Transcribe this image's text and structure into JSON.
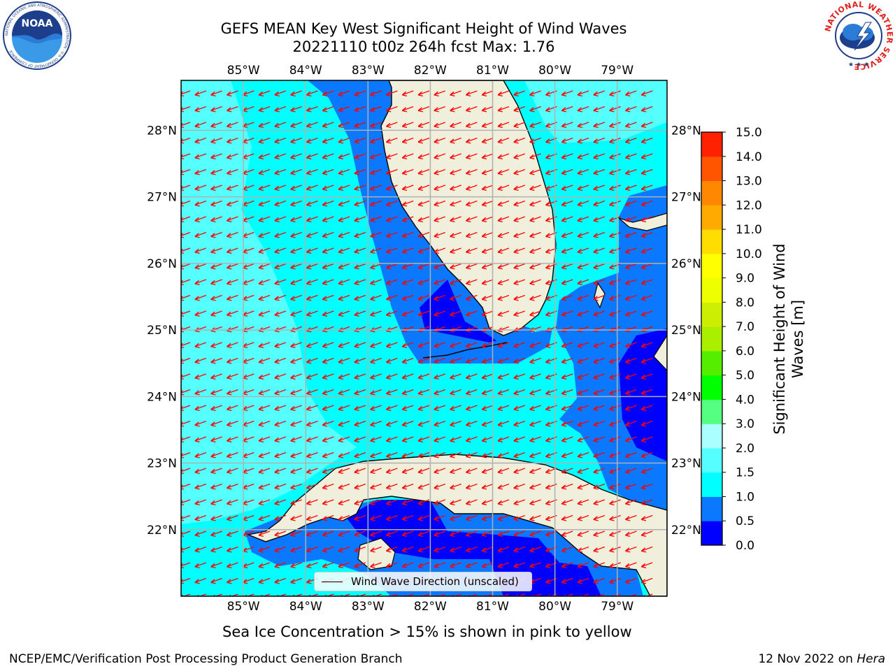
{
  "title": {
    "line1": "GEFS MEAN Key West Significant Height of Wind Waves",
    "line2": "20221110 t00z 264h fcst   Max: 1.76"
  },
  "logos": {
    "noaa": {
      "label": "NOAA",
      "ring_text": "NATIONAL OCEANIC AND ATMOSPHERIC ADMINISTRATION · U.S. DEPARTMENT OF COMMERCE"
    },
    "nws": {
      "ring_text": "NATIONAL WEATHER SERVICE"
    }
  },
  "map": {
    "lon_labels": [
      "85°W",
      "84°W",
      "83°W",
      "82°W",
      "81°W",
      "80°W",
      "79°W"
    ],
    "lat_labels": [
      "28°N",
      "27°N",
      "26°N",
      "25°N",
      "24°N",
      "23°N",
      "22°N"
    ],
    "lon_values": [
      -85,
      -84,
      -83,
      -82,
      -81,
      -80,
      -79
    ],
    "lat_values": [
      28,
      27,
      26,
      25,
      24,
      23,
      22
    ],
    "extent": {
      "lon_min": -86.0,
      "lon_max": -78.2,
      "lat_min": 21.0,
      "lat_max": 28.75
    },
    "arrow_color": "#ff0000",
    "land_color": "#efefdb",
    "legend_label": "Wind Wave Direction (unscaled)"
  },
  "colorbar": {
    "title": "Significant Height of Wind Waves [m]",
    "ticks": [
      "15.0",
      "14.0",
      "13.0",
      "12.0",
      "11.0",
      "10.0",
      "9.0",
      "8.0",
      "7.0",
      "6.0",
      "5.0",
      "4.0",
      "3.0",
      "2.0",
      "1.5",
      "1.0",
      "0.5",
      "0.0"
    ],
    "colors": [
      "#0000ff",
      "#0a78ff",
      "#00ffff",
      "#55ffff",
      "#aaffff",
      "#55ff80",
      "#00ff00",
      "#55ee00",
      "#aaee00",
      "#ccee00",
      "#eeff00",
      "#ffff00",
      "#ffdd00",
      "#ffaa00",
      "#ff8800",
      "#ff5500",
      "#ff2200"
    ]
  },
  "note": "Sea Ice Concentration > 15% is shown in pink to yellow",
  "footer": {
    "left": "NCEP/EMC/Verification Post Processing Product Generation Branch",
    "date": "12 Nov 2022 on ",
    "host": "Hera"
  }
}
